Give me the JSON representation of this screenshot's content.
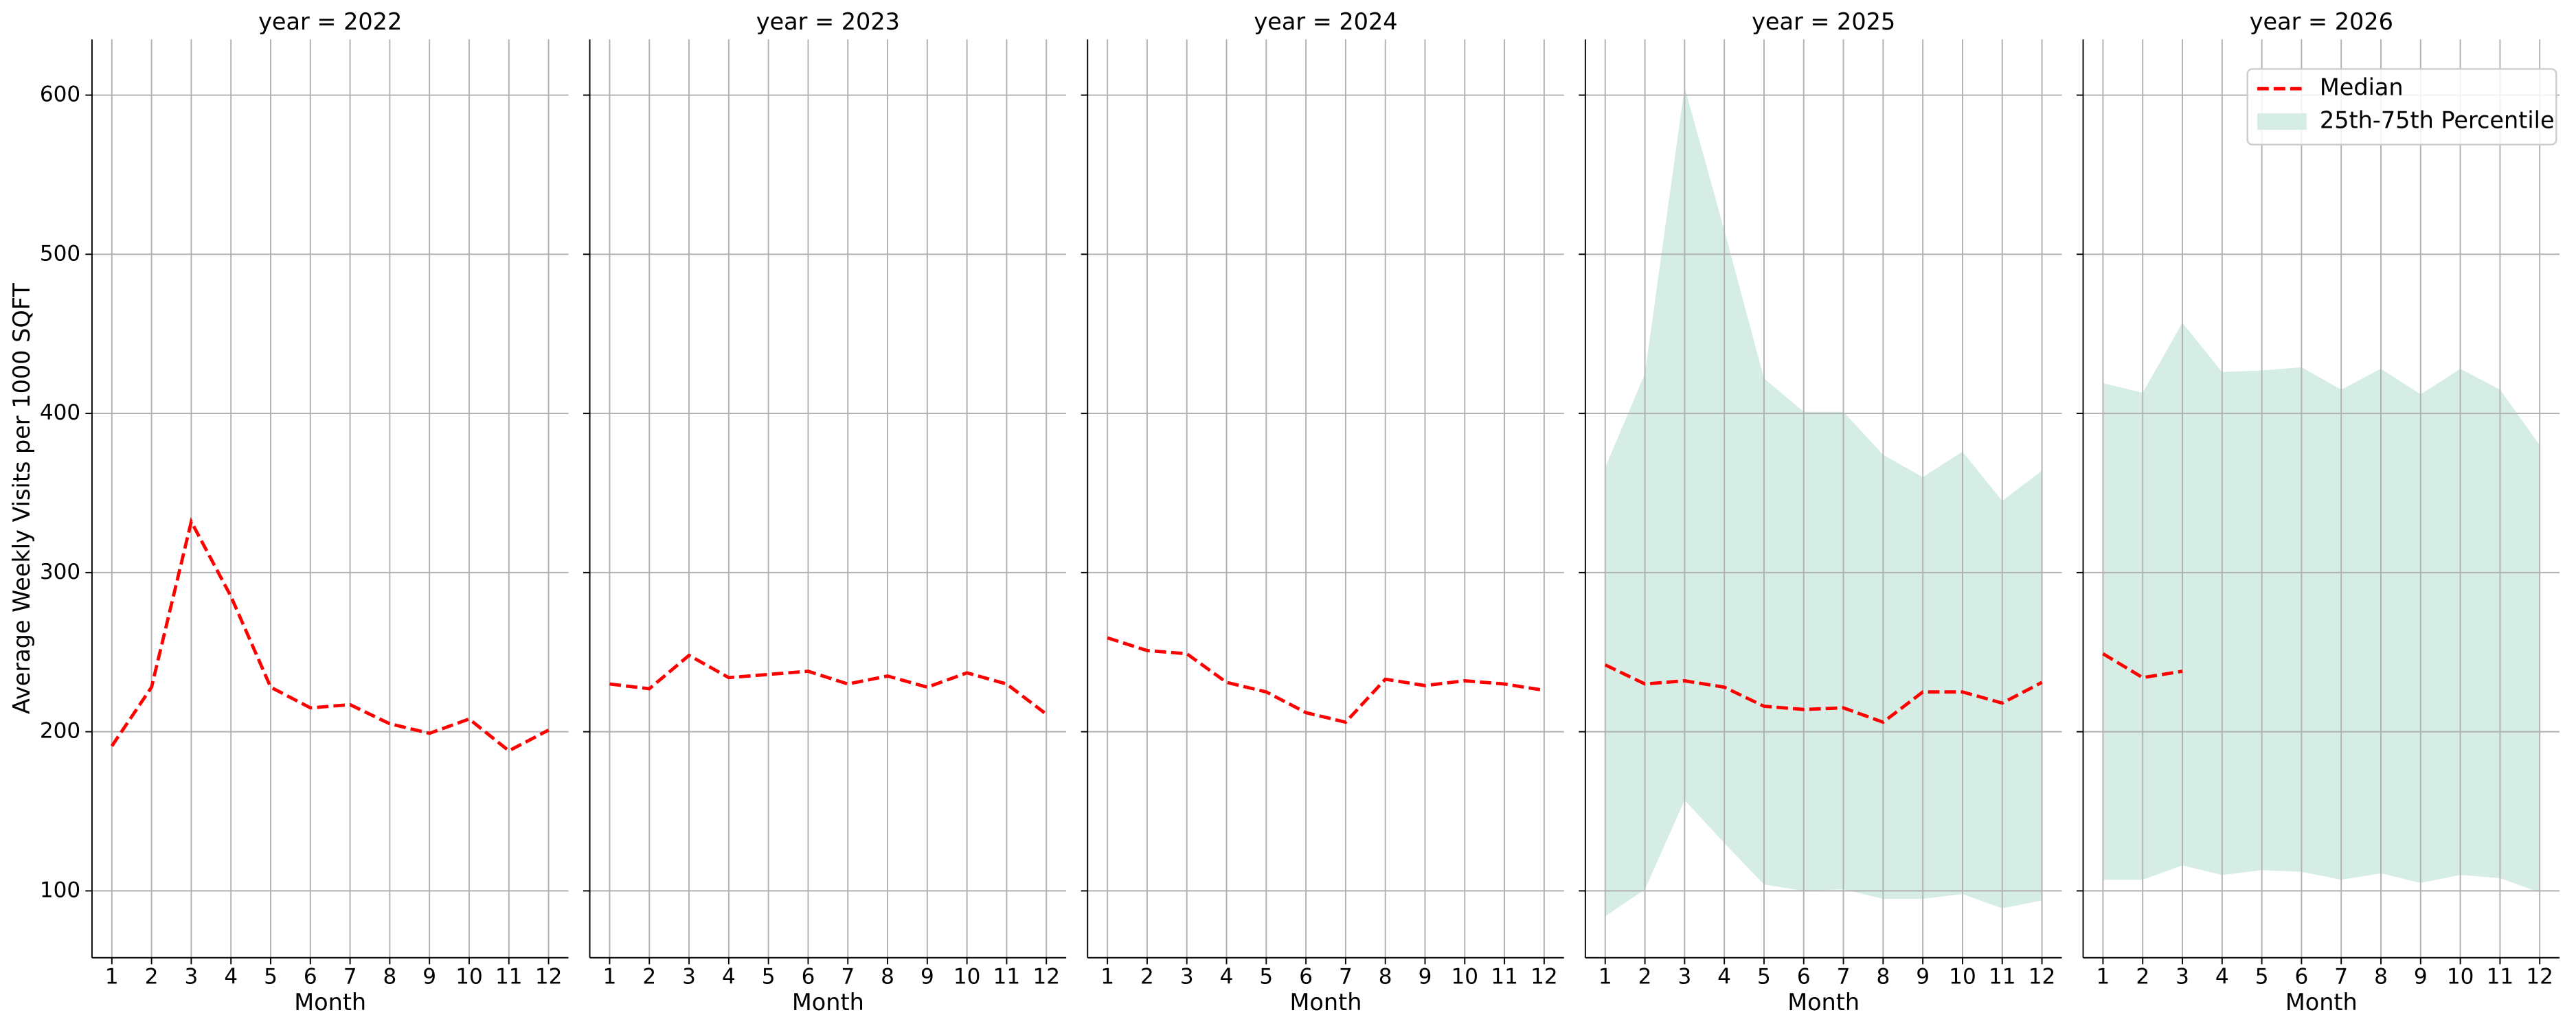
{
  "chart_data": [
    {
      "type": "line",
      "title": "year = 2022",
      "xlabel": "Month",
      "ylabel": "Average Weekly Visits per 1000 SQFT",
      "x": [
        1,
        2,
        3,
        4,
        5,
        6,
        7,
        8,
        9,
        10,
        11,
        12
      ],
      "xlim": [
        0.5,
        12.5
      ],
      "xticks": [
        1,
        2,
        3,
        4,
        5,
        6,
        7,
        8,
        9,
        10,
        11,
        12
      ],
      "ylim": [
        58,
        635
      ],
      "yticks": [
        100,
        200,
        300,
        400,
        500,
        600
      ],
      "grid": true,
      "series": [
        {
          "color": "#ff0000",
          "values": [
            191,
            228,
            332,
            285,
            228,
            215,
            217,
            205,
            199,
            208,
            188,
            201
          ]
        }
      ]
    },
    {
      "type": "line",
      "title": "year = 2023",
      "xlabel": "Month",
      "x": [
        1,
        2,
        3,
        4,
        5,
        6,
        7,
        8,
        9,
        10,
        11,
        12
      ],
      "xlim": [
        0.5,
        12.5
      ],
      "xticks": [
        1,
        2,
        3,
        4,
        5,
        6,
        7,
        8,
        9,
        10,
        11,
        12
      ],
      "ylim": [
        58,
        635
      ],
      "yticks": [
        100,
        200,
        300,
        400,
        500,
        600
      ],
      "grid": true,
      "series": [
        {
          "color": "#ff0000",
          "values": [
            230,
            227,
            248,
            234,
            236,
            238,
            230,
            235,
            228,
            237,
            230,
            211
          ]
        }
      ]
    },
    {
      "type": "line",
      "title": "year = 2024",
      "xlabel": "Month",
      "x": [
        1,
        2,
        3,
        4,
        5,
        6,
        7,
        8,
        9,
        10,
        11,
        12
      ],
      "xlim": [
        0.5,
        12.5
      ],
      "xticks": [
        1,
        2,
        3,
        4,
        5,
        6,
        7,
        8,
        9,
        10,
        11,
        12
      ],
      "ylim": [
        58,
        635
      ],
      "yticks": [
        100,
        200,
        300,
        400,
        500,
        600
      ],
      "grid": true,
      "series": [
        {
          "color": "#ff0000",
          "values": [
            259,
            251,
            249,
            231,
            225,
            212,
            206,
            233,
            229,
            232,
            230,
            226
          ]
        }
      ]
    },
    {
      "type": "line",
      "title": "year = 2025",
      "xlabel": "Month",
      "x": [
        1,
        2,
        3,
        4,
        5,
        6,
        7,
        8,
        9,
        10,
        11,
        12
      ],
      "xlim": [
        0.5,
        12.5
      ],
      "xticks": [
        1,
        2,
        3,
        4,
        5,
        6,
        7,
        8,
        9,
        10,
        11,
        12
      ],
      "ylim": [
        58,
        635
      ],
      "yticks": [
        100,
        200,
        300,
        400,
        500,
        600
      ],
      "grid": true,
      "series": [
        {
          "color": "#ff0000",
          "values": [
            242,
            230,
            232,
            228,
            216,
            214,
            215,
            206,
            225,
            225,
            218,
            231
          ]
        }
      ],
      "bands": [
        {
          "color": "#d5ede5",
          "lower": [
            84,
            101,
            157,
            130,
            104,
            100,
            101,
            95,
            95,
            98,
            89,
            94
          ],
          "upper": [
            366,
            425,
            605,
            515,
            422,
            401,
            401,
            374,
            360,
            376,
            345,
            364
          ]
        }
      ]
    },
    {
      "type": "line",
      "title": "year = 2026",
      "xlabel": "Month",
      "x": [
        1,
        2,
        3,
        4,
        5,
        6,
        7,
        8,
        9,
        10,
        11,
        12
      ],
      "xlim": [
        0.5,
        12.5
      ],
      "xticks": [
        1,
        2,
        3,
        4,
        5,
        6,
        7,
        8,
        9,
        10,
        11,
        12
      ],
      "ylim": [
        58,
        635
      ],
      "yticks": [
        100,
        200,
        300,
        400,
        500,
        600
      ],
      "grid": true,
      "legend": "upper right",
      "series": [
        {
          "name": "Median",
          "color": "#ff0000",
          "values": [
            249,
            234,
            238,
            null,
            null,
            null,
            null,
            null,
            null,
            null,
            null,
            null
          ]
        }
      ],
      "bands": [
        {
          "name": "25th-75th Percentile",
          "color": "#d5ede5",
          "lower": [
            107,
            107,
            116,
            110,
            113,
            112,
            107,
            111,
            105,
            110,
            108,
            99
          ],
          "upper": [
            419,
            413,
            457,
            426,
            427,
            429,
            415,
            428,
            412,
            428,
            415,
            380
          ]
        }
      ]
    }
  ]
}
